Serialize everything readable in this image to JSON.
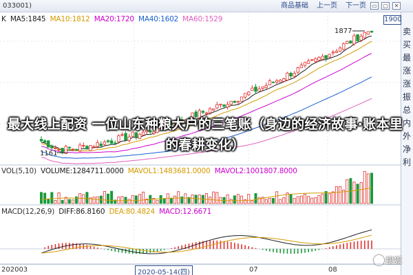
{
  "header": {
    "code_tab": "033001)",
    "links": [
      "商品基础",
      "上一页",
      "下一页"
    ],
    "window_icons": [
      "▭",
      "▢",
      "✕"
    ]
  },
  "price_box": "1900",
  "side_labels": [
    "卖",
    "买",
    "最",
    "涨",
    "涨",
    "振",
    "总",
    "内",
    "外",
    "净",
    "利"
  ],
  "ma_legend": {
    "k": "K",
    "ma5": "MA5:1845",
    "ma10": "MA10:1812",
    "ma20": "MA20:1720",
    "ma40": "MA40:1602",
    "ma60": "MA60:1529"
  },
  "vol_legend": {
    "vol": "VOL(5,10)",
    "volume": "VOLUME:1284711.0000",
    "mavol1": "MAVOL1:1483681.0000",
    "mavol2": "MAVOL2:1001807.8000"
  },
  "macd_legend": {
    "macd": "MACD(12,26,9)",
    "diff": "DIFF:86.8160",
    "dea": "DEA:80.4824",
    "macd_value": "MACD:12.6671"
  },
  "annotations": {
    "high": "1877",
    "low": "1161"
  },
  "date_axis": {
    "start": "202003",
    "current": "2020-05-14(四)",
    "m07": "07",
    "m08": "08"
  },
  "overlay_title": "最大线上配资 一位山东种粮大户的三笔账（身边的经济故事·账本里的春耕变化）",
  "watermark": "搜狐",
  "colors": {
    "up": "#e0302c",
    "down": "#1a9a3a",
    "ma5": "#1c1c1c",
    "ma10": "#d49a00",
    "ma20": "#cc00cc",
    "ma40": "#1a5fd0",
    "ma60": "#e060c0",
    "accent": "#2a4a8a"
  },
  "chart_data": {
    "type": "candlestick",
    "period": "daily",
    "annotations": {
      "high": 1877,
      "low": 1161
    },
    "indicators": {
      "ma": {
        "MA5": 1845,
        "MA10": 1812,
        "MA20": 1720,
        "MA40": 1602,
        "MA60": 1529
      },
      "vol": {
        "VOLUME": 1284711.0,
        "MAVOL1": 1483681.0,
        "MAVOL2": 1001807.8
      },
      "macd": {
        "DIFF": 86.816,
        "DEA": 80.4824,
        "MACD": 12.6671
      }
    },
    "x_axis_labels": [
      "202003",
      "2020-05-14(四)",
      "07",
      "08"
    ]
  }
}
